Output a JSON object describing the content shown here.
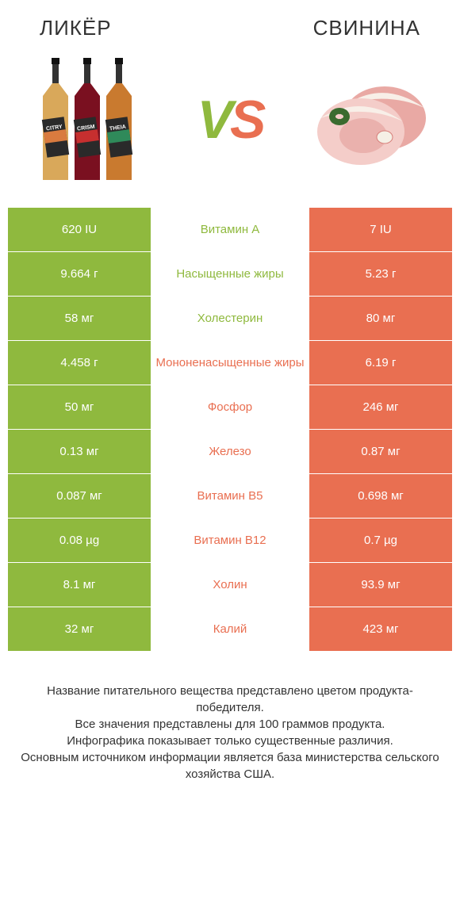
{
  "header": {
    "left_title": "ЛИКЁР",
    "right_title": "СВИНИНА"
  },
  "vs": {
    "v": "V",
    "s": "S"
  },
  "colors": {
    "left_bg": "#8fb93e",
    "right_bg": "#e96f51",
    "left_text": "#8fb93e",
    "right_text": "#e96f51",
    "inactive_opacity": "0.0"
  },
  "table": {
    "rows": [
      {
        "left": "620 IU",
        "mid": "Витамин A",
        "right": "7 IU",
        "winner": "left"
      },
      {
        "left": "9.664 г",
        "mid": "Насыщенные жиры",
        "right": "5.23 г",
        "winner": "left"
      },
      {
        "left": "58 мг",
        "mid": "Холестерин",
        "right": "80 мг",
        "winner": "left"
      },
      {
        "left": "4.458 г",
        "mid": "Мононенасыщенные жиры",
        "right": "6.19 г",
        "winner": "right"
      },
      {
        "left": "50 мг",
        "mid": "Фосфор",
        "right": "246 мг",
        "winner": "right"
      },
      {
        "left": "0.13 мг",
        "mid": "Железо",
        "right": "0.87 мг",
        "winner": "right"
      },
      {
        "left": "0.087 мг",
        "mid": "Витамин B5",
        "right": "0.698 мг",
        "winner": "right"
      },
      {
        "left": "0.08 µg",
        "mid": "Витамин B12",
        "right": "0.7 µg",
        "winner": "right"
      },
      {
        "left": "8.1 мг",
        "mid": "Холин",
        "right": "93.9 мг",
        "winner": "right"
      },
      {
        "left": "32 мг",
        "mid": "Калий",
        "right": "423 мг",
        "winner": "right"
      }
    ]
  },
  "footer": {
    "line1": "Название питательного вещества представлено цветом продукта-победителя.",
    "line2": "Все значения представлены для 100 граммов продукта.",
    "line3": "Инфографика показывает только существенные различия.",
    "line4": "Основным источником информации является база министерства сельского хозяйства США."
  },
  "bottles": [
    {
      "body": "#d9a85a",
      "label_bg": "#2a2a2a",
      "label_stripe": "#d97b3f",
      "label_text": "CITRY"
    },
    {
      "body": "#7a1020",
      "label_bg": "#2a2a2a",
      "label_stripe": "#c62f2f",
      "label_text": "CRISM"
    },
    {
      "body": "#c97a2f",
      "label_bg": "#2a2a2a",
      "label_stripe": "#2f8a5a",
      "label_text": "THEIA"
    }
  ],
  "pork": {
    "meat_light": "#f4cdc9",
    "meat_mid": "#e9a9a4",
    "meat_dark": "#d67d78",
    "fat": "#f8efe8",
    "bone": "#f5f0e6",
    "herb": "#3a6b2f"
  }
}
